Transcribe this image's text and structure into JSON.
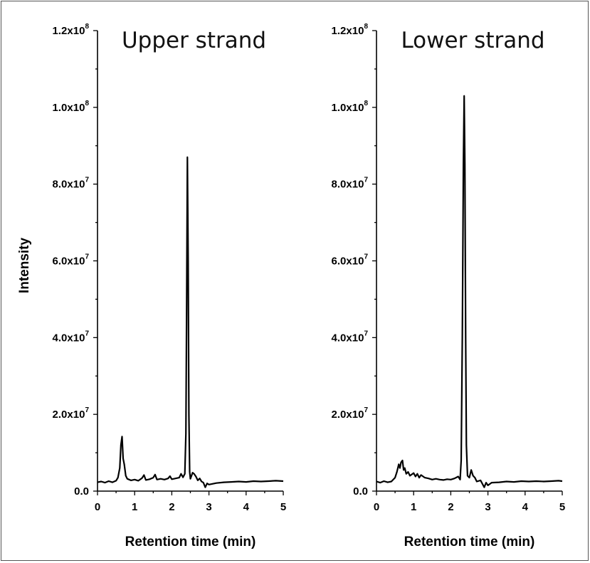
{
  "figure": {
    "ylabel": "Intensity",
    "xlabel": "Retention time (min)"
  },
  "chart_data": [
    {
      "type": "line",
      "title": "Upper strand",
      "xlabel": "Retention time (min)",
      "ylabel": "Intensity",
      "xlim": [
        0,
        5
      ],
      "ylim": [
        0,
        120000000
      ],
      "x_ticks": [
        0,
        1,
        2,
        3,
        4,
        5
      ],
      "x_tick_labels": [
        "0",
        "1",
        "2",
        "3",
        "4",
        "5"
      ],
      "y_ticks": [
        0,
        20000000,
        40000000,
        60000000,
        80000000,
        100000000,
        120000000
      ],
      "y_tick_labels": [
        {
          "mantissa": "0.0",
          "exp": ""
        },
        {
          "mantissa": "2.0x10",
          "exp": "7"
        },
        {
          "mantissa": "4.0x10",
          "exp": "7"
        },
        {
          "mantissa": "6.0x10",
          "exp": "7"
        },
        {
          "mantissa": "8.0x10",
          "exp": "7"
        },
        {
          "mantissa": "1.0x10",
          "exp": "8"
        },
        {
          "mantissa": "1.2x10",
          "exp": "8"
        }
      ],
      "series": [
        {
          "x": [
            0.0,
            0.1,
            0.2,
            0.3,
            0.4,
            0.5,
            0.55,
            0.6,
            0.63,
            0.66,
            0.69,
            0.72,
            0.76,
            0.8,
            0.9,
            1.0,
            1.1,
            1.2,
            1.25,
            1.3,
            1.4,
            1.5,
            1.55,
            1.6,
            1.7,
            1.8,
            1.9,
            1.95,
            2.0,
            2.1,
            2.2,
            2.25,
            2.3,
            2.35,
            2.38,
            2.4,
            2.42,
            2.44,
            2.46,
            2.48,
            2.5,
            2.53,
            2.56,
            2.6,
            2.65,
            2.7,
            2.75,
            2.8,
            2.85,
            2.9,
            2.95,
            3.0,
            3.2,
            3.4,
            3.6,
            3.8,
            4.0,
            4.2,
            4.4,
            4.6,
            4.8,
            5.0
          ],
          "y": [
            2300000,
            2500000,
            2200000,
            2600000,
            2300000,
            2700000,
            3500000,
            6000000,
            12000000,
            14200000,
            8500000,
            7000000,
            4000000,
            3200000,
            2800000,
            3000000,
            2700000,
            3400000,
            4200000,
            2900000,
            3100000,
            3500000,
            4300000,
            3000000,
            3200000,
            3000000,
            3300000,
            3900000,
            3100000,
            3300000,
            3500000,
            4500000,
            3600000,
            4500000,
            15000000,
            50000000,
            87000000,
            60000000,
            20000000,
            5000000,
            3200000,
            4000000,
            4800000,
            4500000,
            3800000,
            2800000,
            3300000,
            2500000,
            2200000,
            1000000,
            2000000,
            1700000,
            2100000,
            2300000,
            2400000,
            2500000,
            2400000,
            2600000,
            2500000,
            2600000,
            2700000,
            2600000
          ]
        }
      ]
    },
    {
      "type": "line",
      "title": "Lower strand",
      "xlabel": "Retention time (min)",
      "ylabel": "",
      "xlim": [
        0,
        5
      ],
      "ylim": [
        0,
        120000000
      ],
      "x_ticks": [
        0,
        1,
        2,
        3,
        4,
        5
      ],
      "x_tick_labels": [
        "0",
        "1",
        "2",
        "3",
        "4",
        "5"
      ],
      "y_ticks": [
        0,
        20000000,
        40000000,
        60000000,
        80000000,
        100000000,
        120000000
      ],
      "y_tick_labels": [
        {
          "mantissa": "0.0",
          "exp": ""
        },
        {
          "mantissa": "2.0x10",
          "exp": "7"
        },
        {
          "mantissa": "4.0x10",
          "exp": "7"
        },
        {
          "mantissa": "6.0x10",
          "exp": "7"
        },
        {
          "mantissa": "8.0x10",
          "exp": "7"
        },
        {
          "mantissa": "1.0x10",
          "exp": "8"
        },
        {
          "mantissa": "1.2x10",
          "exp": "8"
        }
      ],
      "series": [
        {
          "x": [
            0.0,
            0.1,
            0.2,
            0.3,
            0.4,
            0.5,
            0.55,
            0.6,
            0.63,
            0.66,
            0.7,
            0.73,
            0.76,
            0.8,
            0.85,
            0.9,
            1.0,
            1.05,
            1.1,
            1.15,
            1.2,
            1.3,
            1.4,
            1.5,
            1.6,
            1.7,
            1.8,
            1.9,
            2.0,
            2.1,
            2.2,
            2.25,
            2.28,
            2.31,
            2.34,
            2.36,
            2.38,
            2.4,
            2.42,
            2.45,
            2.5,
            2.55,
            2.6,
            2.65,
            2.7,
            2.8,
            2.9,
            2.95,
            3.0,
            3.1,
            3.3,
            3.5,
            3.7,
            3.9,
            4.1,
            4.3,
            4.5,
            4.7,
            4.9,
            5.0
          ],
          "y": [
            2500000,
            2200000,
            2600000,
            2300000,
            2500000,
            3500000,
            5000000,
            7000000,
            6000000,
            7500000,
            8000000,
            5500000,
            6000000,
            4500000,
            5000000,
            4000000,
            4700000,
            3800000,
            4500000,
            3500000,
            4200000,
            3500000,
            3300000,
            3000000,
            3200000,
            3000000,
            2900000,
            3100000,
            3000000,
            3300000,
            3800000,
            3000000,
            8000000,
            40000000,
            85000000,
            103000000,
            85000000,
            40000000,
            12000000,
            4000000,
            3500000,
            5500000,
            4000000,
            3500000,
            2500000,
            2800000,
            1000000,
            2200000,
            1500000,
            2200000,
            2300000,
            2500000,
            2400000,
            2600000,
            2500000,
            2600000,
            2500000,
            2600000,
            2700000,
            2600000
          ]
        }
      ]
    }
  ]
}
